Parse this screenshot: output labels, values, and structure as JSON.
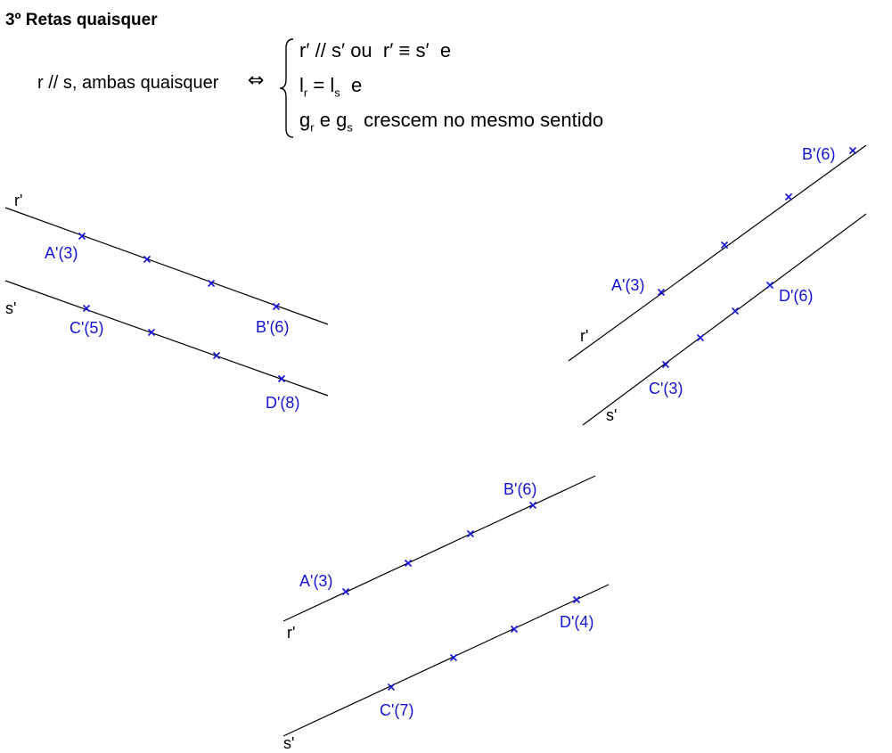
{
  "title": "3º Retas quaisquer",
  "criterion": {
    "lhs": "r // s, ambas quaisquer",
    "iff": "⇔",
    "cond1": {
      "r": "r′",
      "par": "//",
      "s": "s′",
      "ou": "ou",
      "r2": "r′",
      "eq": "≡",
      "s2": "s′",
      "e": "e"
    },
    "cond2": {
      "l": "l",
      "sub_r": "r",
      "eqsign": "=",
      "l2": "l",
      "sub_s": "s",
      "e": "e"
    },
    "cond3": {
      "g": "g",
      "sub_r": "r",
      "e": "e",
      "g2": "g",
      "sub_s": "s",
      "text": "crescem no mesmo sentido"
    }
  },
  "figures": [
    {
      "name": "figure-1",
      "lines": [
        {
          "label": "r'",
          "points": [
            {
              "label": "A'(3)"
            },
            {
              "label": ""
            },
            {
              "label": ""
            },
            {
              "label": "B'(6)"
            }
          ]
        },
        {
          "label": "s'",
          "points": [
            {
              "label": "C'(5)"
            },
            {
              "label": ""
            },
            {
              "label": ""
            },
            {
              "label": "D'(8)"
            }
          ]
        }
      ]
    },
    {
      "name": "figure-2",
      "lines": [
        {
          "label": "r'",
          "points": [
            {
              "label": "A'(3)"
            },
            {
              "label": ""
            },
            {
              "label": ""
            },
            {
              "label": "B'(6)"
            }
          ]
        },
        {
          "label": "s'",
          "points": [
            {
              "label": "C'(3)"
            },
            {
              "label": ""
            },
            {
              "label": ""
            },
            {
              "label": "D'(6)"
            }
          ]
        }
      ]
    },
    {
      "name": "figure-3",
      "lines": [
        {
          "label": "r'",
          "points": [
            {
              "label": "A'(3)"
            },
            {
              "label": ""
            },
            {
              "label": ""
            },
            {
              "label": "B'(6)"
            }
          ]
        },
        {
          "label": "s'",
          "points": [
            {
              "label": "C'(7)"
            },
            {
              "label": ""
            },
            {
              "label": ""
            },
            {
              "label": "D'(4)"
            }
          ]
        }
      ]
    }
  ]
}
